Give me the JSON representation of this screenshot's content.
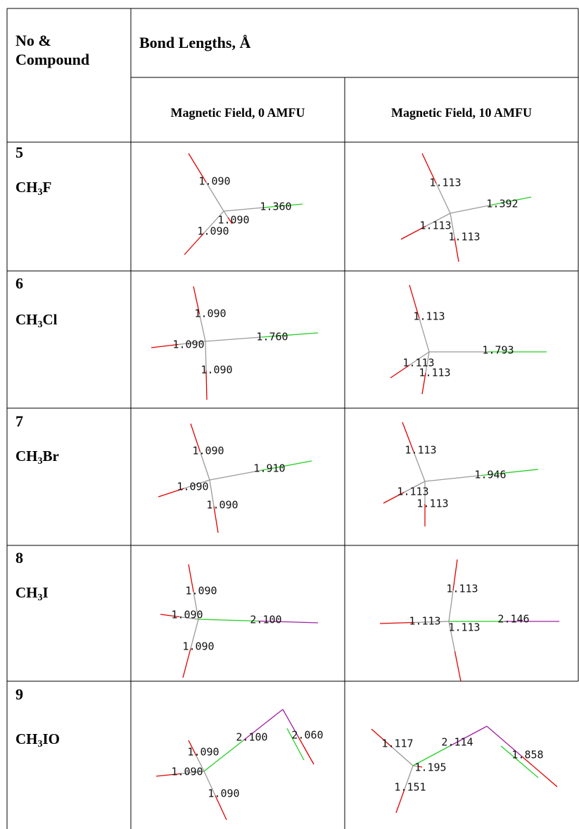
{
  "header": {
    "compound": "No & Compound",
    "bond_lengths": "Bond Lengths, Å",
    "field_0": "Magnetic Field, 0 AMFU",
    "field_10": "Magnetic Field, 10 AMFU"
  },
  "rows": [
    {
      "no": "5",
      "formula": {
        "main": "CH",
        "sub": "3",
        "end": "F"
      },
      "field_0": [
        "1.090",
        "1.360",
        "1.090",
        "1.090"
      ],
      "field_10": [
        "1.113",
        "1.392",
        "1.113",
        "1.113"
      ]
    },
    {
      "no": "6",
      "formula": {
        "main": "CH",
        "sub": "3",
        "end": "Cl"
      },
      "field_0": [
        "1.090",
        "1.760",
        "1.090",
        "1.090"
      ],
      "field_10": [
        "1.113",
        "1.793",
        "1.113",
        "1.113"
      ]
    },
    {
      "no": "7",
      "formula": {
        "main": "CH",
        "sub": "3",
        "end": "Br"
      },
      "field_0": [
        "1.090",
        "1.910",
        "1.090",
        "1.090"
      ],
      "field_10": [
        "1.113",
        "1.946",
        "1.113",
        "1.113"
      ]
    },
    {
      "no": "8",
      "formula": {
        "main": "CH",
        "sub": "3",
        "end": "I"
      },
      "field_0": [
        "1.090",
        "2.100",
        "1.090",
        "1.090"
      ],
      "field_10": [
        "1.113",
        "2.146",
        "1.113",
        "1.113"
      ]
    },
    {
      "no": "9",
      "formula": {
        "main": "CH",
        "sub": "3",
        "end": "IO"
      },
      "field_0": [
        "1.090",
        "2.100",
        "2.060",
        "1.090",
        "1.090"
      ],
      "field_10": [
        "1.117",
        "2.114",
        "1.858",
        "1.195",
        "1.151"
      ]
    }
  ]
}
